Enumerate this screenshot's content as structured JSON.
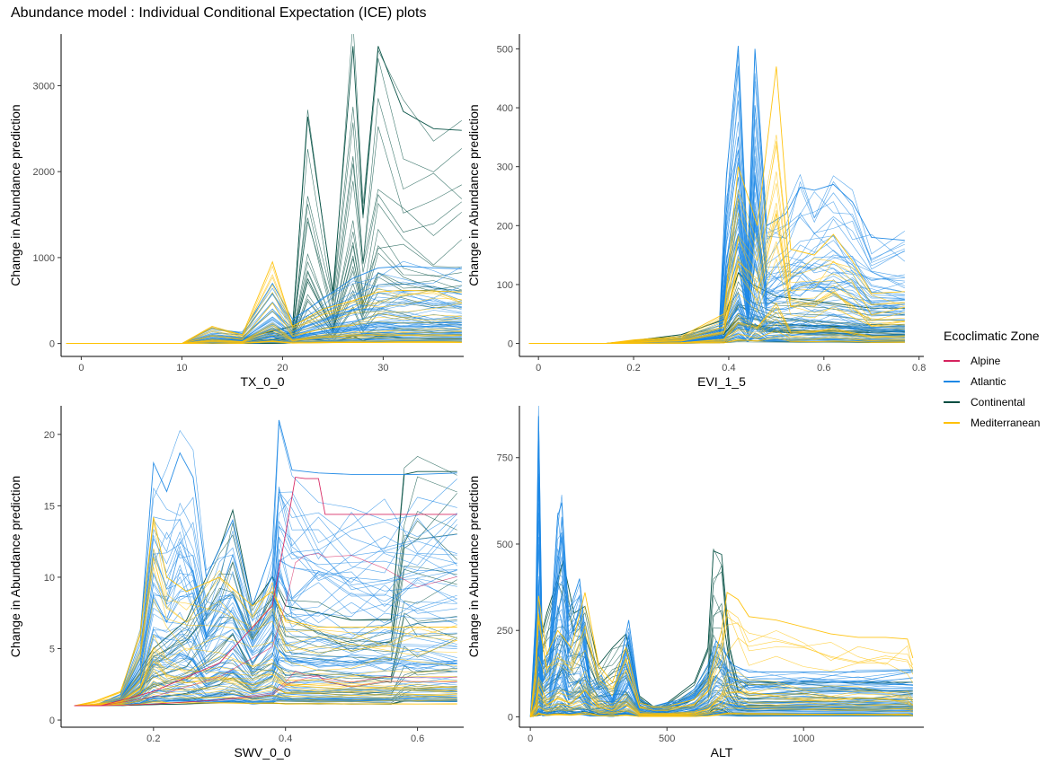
{
  "title": "Abundance model : Individual Conditional Expectation (ICE) plots",
  "legend": {
    "title": "Ecoclimatic Zone",
    "items": [
      {
        "label": "Alpine",
        "color": "#d6225e"
      },
      {
        "label": "Atlantic",
        "color": "#1e88e5"
      },
      {
        "label": "Continental",
        "color": "#004d40"
      },
      {
        "label": "Mediterranean",
        "color": "#ffc107"
      }
    ],
    "placement": "right"
  },
  "chart_data": [
    {
      "type": "line",
      "xlabel": "TX_0_0",
      "ylabel": "Change in Abundance prediction",
      "xlim": [
        -2,
        38
      ],
      "ylim": [
        -150,
        3600
      ],
      "xticks": [
        0,
        10,
        20,
        30
      ],
      "yticks": [
        0,
        1000,
        2000,
        3000
      ],
      "grid": false,
      "series": [
        {
          "name": "Atlantic",
          "x": [
            -1.5,
            10,
            13,
            16,
            19,
            21,
            24,
            27,
            29.5,
            32,
            35,
            37.8
          ],
          "y": [
            0,
            0,
            180,
            120,
            700,
            280,
            520,
            760,
            880,
            900,
            880,
            870
          ]
        },
        {
          "name": "Continental",
          "x": [
            -1.5,
            10,
            13,
            16,
            19,
            21,
            22.5,
            25,
            27,
            28,
            29.5,
            32,
            35,
            37.8
          ],
          "y": [
            0,
            0,
            40,
            60,
            140,
            200,
            2640,
            600,
            3460,
            1500,
            3460,
            2700,
            2500,
            2480
          ]
        },
        {
          "name": "Mediterranean",
          "x": [
            -1.5,
            10,
            13,
            16,
            19,
            21,
            24,
            27,
            29.5,
            32,
            35,
            37.8
          ],
          "y": [
            0,
            0,
            200,
            100,
            950,
            200,
            400,
            500,
            600,
            620,
            610,
            600
          ]
        }
      ]
    },
    {
      "type": "line",
      "xlabel": "EVI_1_5",
      "ylabel": "Change in Abundance prediction",
      "xlim": [
        -0.04,
        0.81
      ],
      "ylim": [
        -22,
        525
      ],
      "xticks": [
        0.0,
        0.2,
        0.4,
        0.6,
        0.8
      ],
      "yticks": [
        0,
        100,
        200,
        300,
        400,
        500
      ],
      "grid": false,
      "series": [
        {
          "name": "Atlantic",
          "x": [
            -0.02,
            0.14,
            0.2,
            0.3,
            0.38,
            0.395,
            0.42,
            0.44,
            0.455,
            0.48,
            0.52,
            0.55,
            0.58,
            0.62,
            0.66,
            0.7,
            0.77
          ],
          "y": [
            0,
            0,
            3,
            10,
            30,
            280,
            505,
            150,
            500,
            200,
            220,
            265,
            260,
            270,
            240,
            180,
            175
          ]
        },
        {
          "name": "Continental",
          "x": [
            -0.02,
            0.14,
            0.2,
            0.3,
            0.39,
            0.42,
            0.45,
            0.5,
            0.6,
            0.7,
            0.77
          ],
          "y": [
            0,
            0,
            5,
            15,
            40,
            120,
            100,
            80,
            70,
            60,
            60
          ]
        },
        {
          "name": "Mediterranean",
          "x": [
            -0.02,
            0.14,
            0.2,
            0.3,
            0.39,
            0.42,
            0.46,
            0.5,
            0.53,
            0.58,
            0.62,
            0.66,
            0.7,
            0.77
          ],
          "y": [
            0,
            0,
            6,
            12,
            50,
            300,
            200,
            470,
            160,
            150,
            185,
            140,
            85,
            88
          ]
        }
      ]
    },
    {
      "type": "line",
      "xlabel": "SWV_0_0",
      "ylabel": "Change in Abundance prediction",
      "xlim": [
        0.06,
        0.67
      ],
      "ylim": [
        -0.5,
        22
      ],
      "xticks": [
        0.2,
        0.4,
        0.6
      ],
      "yticks": [
        0,
        5,
        10,
        15,
        20
      ],
      "grid": false,
      "series": [
        {
          "name": "Alpine",
          "x": [
            0.08,
            0.12,
            0.2,
            0.3,
            0.38,
            0.4,
            0.415,
            0.43,
            0.45,
            0.46,
            0.5,
            0.55,
            0.6,
            0.66
          ],
          "y": [
            1,
            1,
            2,
            4,
            8,
            13,
            17,
            16.9,
            16.9,
            14.4,
            14.4,
            14.4,
            14.4,
            14.4
          ]
        },
        {
          "name": "Atlantic",
          "x": [
            0.08,
            0.11,
            0.15,
            0.18,
            0.2,
            0.22,
            0.24,
            0.26,
            0.28,
            0.3,
            0.32,
            0.35,
            0.38,
            0.39,
            0.41,
            0.45,
            0.5,
            0.55,
            0.6,
            0.66
          ],
          "y": [
            1,
            1,
            1.8,
            6,
            18,
            16,
            18.7,
            17,
            10,
            12,
            14,
            8,
            12,
            21,
            17.5,
            17.3,
            17.2,
            17.2,
            17.2,
            17.3
          ]
        },
        {
          "name": "Continental",
          "x": [
            0.08,
            0.11,
            0.15,
            0.2,
            0.25,
            0.3,
            0.32,
            0.35,
            0.38,
            0.4,
            0.45,
            0.5,
            0.56,
            0.58,
            0.6,
            0.66
          ],
          "y": [
            1,
            1,
            1.5,
            5,
            7,
            12,
            14.7,
            8,
            10,
            8,
            7.5,
            7,
            7,
            17.2,
            17.4,
            17.4
          ]
        },
        {
          "name": "Mediterranean",
          "x": [
            0.08,
            0.11,
            0.15,
            0.18,
            0.2,
            0.22,
            0.25,
            0.3,
            0.35,
            0.38,
            0.4,
            0.45,
            0.5,
            0.55,
            0.6,
            0.66
          ],
          "y": [
            1,
            1.3,
            2,
            6,
            14.2,
            10,
            9,
            10,
            8,
            9,
            7,
            6.5,
            6.5,
            6.5,
            6.5,
            6.5
          ]
        }
      ]
    },
    {
      "type": "line",
      "xlabel": "ALT",
      "ylabel": "Change in Abundance prediction",
      "xlim": [
        -40,
        1440
      ],
      "ylim": [
        -30,
        900
      ],
      "xticks": [
        0,
        500,
        1000
      ],
      "yticks": [
        0,
        250,
        500,
        750
      ],
      "grid": false,
      "series": [
        {
          "name": "Atlantic",
          "x": [
            0,
            20,
            30,
            45,
            70,
            100,
            115,
            140,
            180,
            220,
            260,
            300,
            340,
            360,
            400,
            450,
            500,
            550,
            600,
            650,
            680,
            700,
            740,
            800,
            1000,
            1200,
            1400
          ],
          "y": [
            0,
            300,
            870,
            150,
            200,
            580,
            620,
            300,
            400,
            100,
            120,
            50,
            200,
            280,
            50,
            30,
            40,
            50,
            80,
            150,
            220,
            200,
            150,
            130,
            130,
            130,
            135
          ]
        },
        {
          "name": "Continental",
          "x": [
            0,
            30,
            60,
            100,
            120,
            160,
            200,
            250,
            300,
            350,
            400,
            450,
            500,
            600,
            650,
            670,
            700,
            730,
            760,
            800,
            1000,
            1200,
            1400
          ],
          "y": [
            0,
            200,
            300,
            400,
            450,
            300,
            320,
            150,
            200,
            240,
            60,
            30,
            40,
            100,
            200,
            480,
            470,
            200,
            100,
            100,
            100,
            100,
            100
          ]
        },
        {
          "name": "Mediterranean",
          "x": [
            0,
            20,
            30,
            60,
            100,
            150,
            200,
            250,
            300,
            350,
            400,
            450,
            500,
            600,
            650,
            700,
            720,
            760,
            800,
            900,
            1000,
            1100,
            1200,
            1300,
            1380,
            1400
          ],
          "y": [
            0,
            150,
            350,
            180,
            250,
            200,
            360,
            150,
            100,
            200,
            40,
            30,
            30,
            50,
            100,
            250,
            360,
            340,
            290,
            280,
            260,
            240,
            230,
            230,
            225,
            170
          ]
        }
      ]
    }
  ]
}
